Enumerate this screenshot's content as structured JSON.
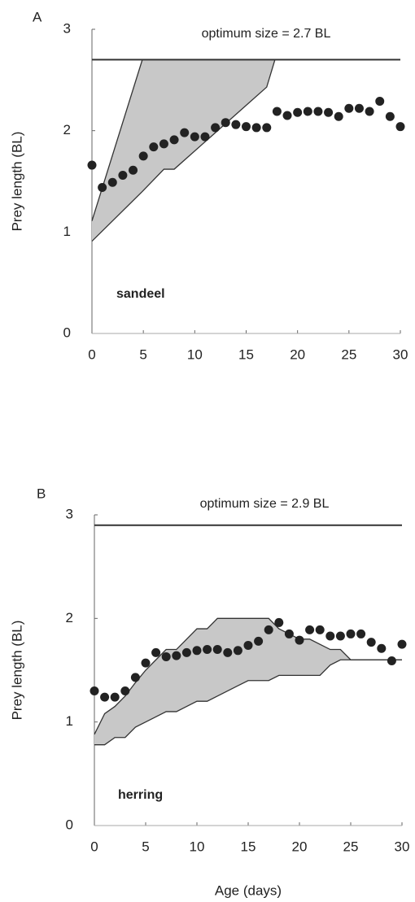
{
  "chart_data": [
    {
      "type": "scatter",
      "panel": "A",
      "title": "optimum size = 2.7 BL",
      "annotation": "sandeel",
      "ylabel": "Prey length (BL)",
      "xlim": [
        0,
        30
      ],
      "ylim": [
        0,
        3
      ],
      "xticks": [
        0,
        5,
        10,
        15,
        20,
        25,
        30
      ],
      "yticks": [
        0,
        1,
        2,
        3
      ],
      "hline": 2.7,
      "color": "#222222",
      "band_color": "#c8c8c8",
      "x": [
        0,
        1,
        2,
        3,
        4,
        5,
        6,
        7,
        8,
        9,
        10,
        11,
        12,
        13,
        14,
        15,
        16,
        17,
        18,
        19,
        20,
        21,
        22,
        23,
        24,
        25,
        26,
        27,
        28,
        29,
        30
      ],
      "values": [
        1.66,
        1.44,
        1.49,
        1.56,
        1.61,
        1.75,
        1.84,
        1.87,
        1.91,
        1.98,
        1.94,
        1.94,
        2.03,
        2.08,
        2.06,
        2.04,
        2.03,
        2.03,
        2.19,
        2.15,
        2.18,
        2.19,
        2.19,
        2.18,
        2.14,
        2.22,
        2.22,
        2.19,
        2.29,
        2.14,
        2.04
      ],
      "band": {
        "x": [
          0,
          4.9,
          7,
          8,
          17,
          17.8
        ],
        "lower": [
          0.91,
          1.4,
          1.62,
          1.62,
          2.43,
          2.7
        ],
        "upper": [
          1.11,
          2.7,
          2.7,
          2.7,
          2.7,
          2.7
        ]
      }
    },
    {
      "type": "scatter",
      "panel": "B",
      "title": "optimum size = 2.9 BL",
      "annotation": "herring",
      "ylabel": "Prey length (BL)",
      "xlabel": "Age (days)",
      "xlim": [
        0,
        30
      ],
      "ylim": [
        0,
        3
      ],
      "xticks": [
        0,
        5,
        10,
        15,
        20,
        25,
        30
      ],
      "yticks": [
        0,
        1,
        2,
        3
      ],
      "hline": 2.9,
      "color": "#222222",
      "band_color": "#c8c8c8",
      "x": [
        0,
        1,
        2,
        3,
        4,
        5,
        6,
        7,
        8,
        9,
        10,
        11,
        12,
        13,
        14,
        15,
        16,
        17,
        18,
        19,
        20,
        21,
        22,
        23,
        24,
        25,
        26,
        27,
        28,
        29,
        30
      ],
      "values": [
        1.3,
        1.24,
        1.24,
        1.3,
        1.43,
        1.57,
        1.67,
        1.63,
        1.64,
        1.67,
        1.69,
        1.7,
        1.7,
        1.67,
        1.69,
        1.74,
        1.78,
        1.89,
        1.96,
        1.85,
        1.79,
        1.89,
        1.89,
        1.83,
        1.83,
        1.85,
        1.85,
        1.77,
        1.71,
        1.59,
        1.75
      ],
      "band": {
        "x": [
          0,
          1,
          2,
          3,
          4,
          5,
          6,
          7,
          8,
          9,
          10,
          11,
          12,
          13,
          14,
          15,
          16,
          17,
          18,
          19,
          20,
          21,
          22,
          23,
          24,
          25,
          30
        ],
        "upper": [
          0.88,
          1.08,
          1.15,
          1.25,
          1.38,
          1.5,
          1.6,
          1.7,
          1.7,
          1.8,
          1.9,
          1.9,
          2.0,
          2.0,
          2.0,
          2.0,
          2.0,
          2.0,
          1.9,
          1.85,
          1.8,
          1.8,
          1.75,
          1.7,
          1.7,
          1.6,
          1.6
        ],
        "lower": [
          0.78,
          0.78,
          0.85,
          0.85,
          0.95,
          1.0,
          1.05,
          1.1,
          1.1,
          1.15,
          1.2,
          1.2,
          1.25,
          1.3,
          1.35,
          1.4,
          1.4,
          1.4,
          1.45,
          1.45,
          1.45,
          1.45,
          1.45,
          1.55,
          1.6,
          1.6,
          1.6
        ]
      }
    }
  ]
}
